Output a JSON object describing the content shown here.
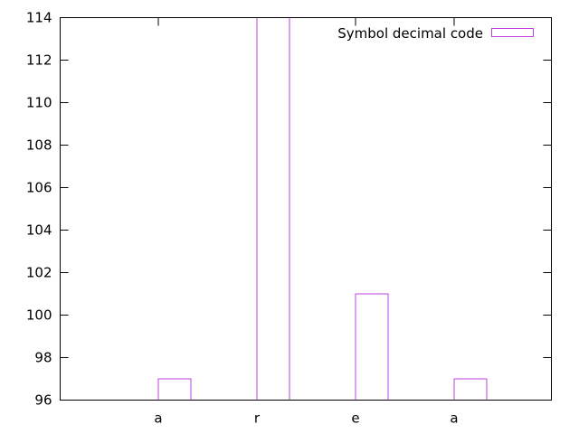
{
  "chart_data": {
    "type": "bar",
    "categories": [
      "a",
      "r",
      "e",
      "a"
    ],
    "series": [
      {
        "name": "Symbol decimal code",
        "values": [
          97,
          114,
          101,
          97
        ]
      }
    ],
    "ylim": [
      96,
      114
    ],
    "yticks": [
      96,
      98,
      100,
      102,
      104,
      106,
      108,
      110,
      112,
      114
    ],
    "grid": false,
    "legend_position": "top-right",
    "bar_color": "#c040e0"
  }
}
